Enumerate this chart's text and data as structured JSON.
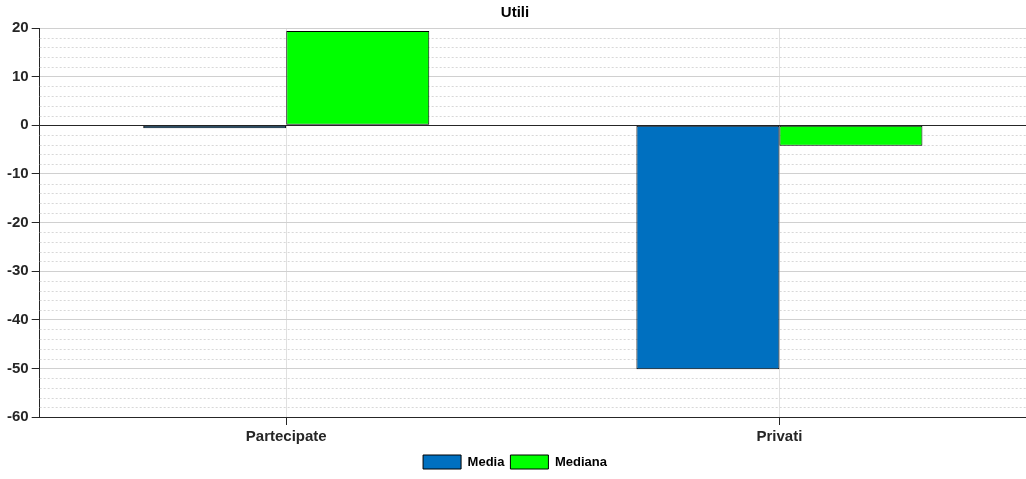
{
  "chart_data": {
    "type": "bar",
    "title": "Utili",
    "categories": [
      "Partecipate",
      "Privati"
    ],
    "series": [
      {
        "name": "Media",
        "color": "#0070c0",
        "values": [
          -0.6,
          -50.2
        ]
      },
      {
        "name": "Mediana",
        "color": "#00ff00",
        "values": [
          19.4,
          -4.2
        ]
      }
    ],
    "ylim": [
      -60,
      20
    ],
    "yticks": [
      -60,
      -50,
      -40,
      -30,
      -20,
      -10,
      0,
      10,
      20
    ],
    "grid": true,
    "legend": "bottom"
  }
}
